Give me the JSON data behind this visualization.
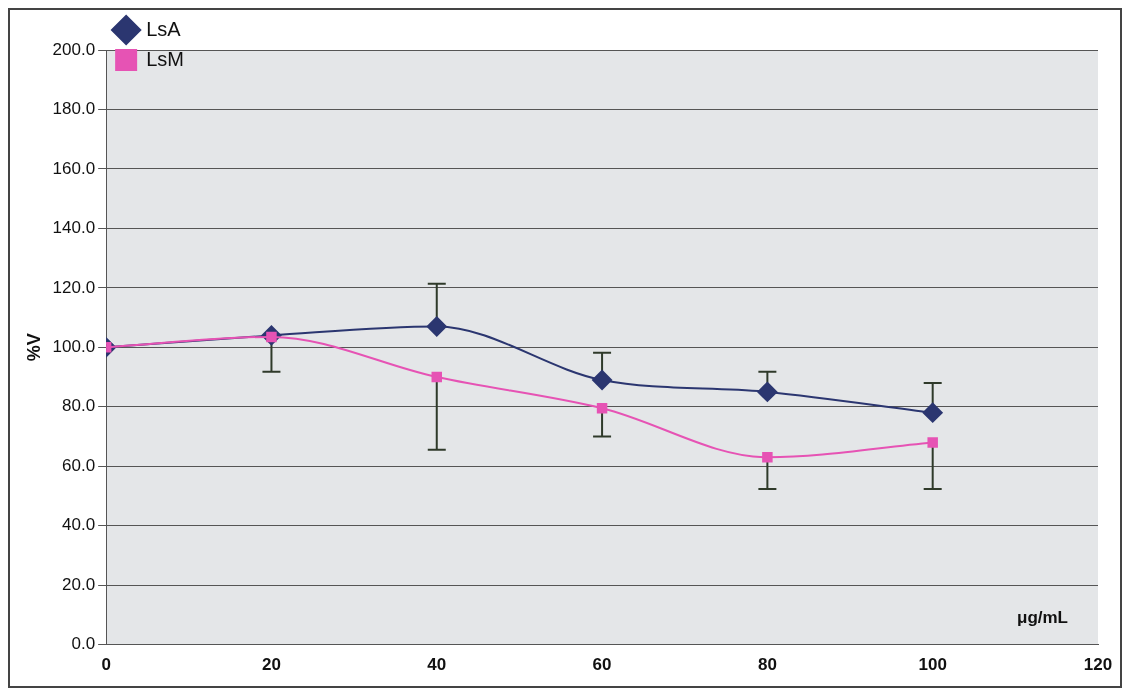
{
  "chart_data": {
    "type": "line",
    "xlabel": "μg/mL",
    "ylabel": "%V",
    "x": [
      0,
      20,
      40,
      60,
      80,
      100
    ],
    "series": [
      {
        "name": "LsA",
        "color": "#2b3670",
        "marker": "diamond",
        "values": [
          100,
          104,
          107,
          89,
          85,
          78
        ],
        "errors": [
          null,
          null,
          [
            107,
            121.4
          ],
          [
            89,
            98.2
          ],
          [
            85,
            91.8
          ],
          [
            78,
            88
          ]
        ]
      },
      {
        "name": "LsM",
        "color": "#e653b4",
        "marker": "square",
        "values": [
          100,
          103.5,
          90,
          79.5,
          63,
          68
        ],
        "errors": [
          null,
          [
            91.8,
            103.5
          ],
          [
            65.5,
            90
          ],
          [
            70,
            79.5
          ],
          [
            52.3,
            63
          ],
          [
            52.3,
            68
          ]
        ]
      }
    ],
    "xlim": [
      0,
      120
    ],
    "xticks": [
      0,
      20,
      40,
      60,
      80,
      100,
      120
    ],
    "ylim": [
      0,
      200
    ],
    "yticks": [
      {
        "value": 0,
        "label": "0.0"
      },
      {
        "value": 20,
        "label": "20.0"
      },
      {
        "value": 40,
        "label": "40.0"
      },
      {
        "value": 60,
        "label": "60.0"
      },
      {
        "value": 80,
        "label": "80.0"
      },
      {
        "value": 100,
        "label": "100.0"
      },
      {
        "value": 120,
        "label": "120.0"
      },
      {
        "value": 140,
        "label": "140.0"
      },
      {
        "value": 160,
        "label": "160.0"
      },
      {
        "value": 180,
        "label": "180.0"
      },
      {
        "value": 200,
        "label": "200.0"
      }
    ],
    "grid": "y",
    "legend": "top left",
    "line_style": "solid"
  }
}
